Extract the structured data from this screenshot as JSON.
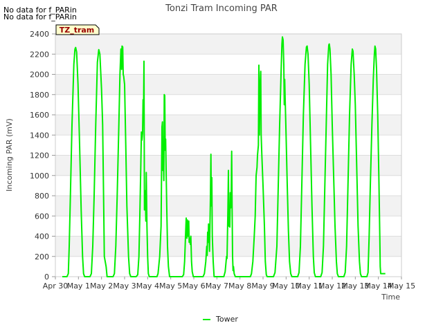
{
  "notes": [
    "No data for f_PARin",
    "No data for f_PARin"
  ],
  "site_label": "TZ_tram",
  "chart_data": {
    "type": "line",
    "title": "Tonzi Tram Incoming PAR",
    "xlabel": "Time",
    "ylabel": "Incoming PAR (mV)",
    "xlim": [
      0,
      15
    ],
    "ylim": [
      0,
      2400
    ],
    "grid": true,
    "legend_position": "bottom-center",
    "x_ticks": [
      {
        "v": 0,
        "label": "Apr 30"
      },
      {
        "v": 1,
        "label": "May 1"
      },
      {
        "v": 2,
        "label": "May 2"
      },
      {
        "v": 3,
        "label": "May 3"
      },
      {
        "v": 4,
        "label": "May 4"
      },
      {
        "v": 5,
        "label": "May 5"
      },
      {
        "v": 6,
        "label": "May 6"
      },
      {
        "v": 7,
        "label": "May 7"
      },
      {
        "v": 8,
        "label": "May 8"
      },
      {
        "v": 9,
        "label": "May 9"
      },
      {
        "v": 10,
        "label": "May 10"
      },
      {
        "v": 11,
        "label": "May 11"
      },
      {
        "v": 12,
        "label": "May 12"
      },
      {
        "v": 13,
        "label": "May 13"
      },
      {
        "v": 14,
        "label": "May 14"
      },
      {
        "v": 15,
        "label": "May 15"
      }
    ],
    "y_ticks": [
      0,
      200,
      400,
      600,
      800,
      1000,
      1200,
      1400,
      1600,
      1800,
      2000,
      2200,
      2400
    ],
    "series": [
      {
        "name": "Tower",
        "color": "#00ee00",
        "points": [
          [
            0.3,
            0
          ],
          [
            0.5,
            0
          ],
          [
            0.56,
            30
          ],
          [
            0.6,
            300
          ],
          [
            0.65,
            800
          ],
          [
            0.72,
            1500
          ],
          [
            0.8,
            2100
          ],
          [
            0.85,
            2250
          ],
          [
            0.88,
            2265
          ],
          [
            0.92,
            2220
          ],
          [
            0.98,
            1900
          ],
          [
            1.05,
            1300
          ],
          [
            1.12,
            650
          ],
          [
            1.18,
            200
          ],
          [
            1.22,
            30
          ],
          [
            1.27,
            0
          ],
          [
            1.5,
            0
          ],
          [
            1.56,
            30
          ],
          [
            1.62,
            300
          ],
          [
            1.68,
            800
          ],
          [
            1.75,
            1500
          ],
          [
            1.82,
            2120
          ],
          [
            1.88,
            2245
          ],
          [
            1.93,
            2200
          ],
          [
            2.0,
            1850
          ],
          [
            2.05,
            1500
          ],
          [
            2.1,
            600
          ],
          [
            2.12,
            200
          ],
          [
            2.2,
            100
          ],
          [
            2.24,
            0
          ],
          [
            2.5,
            0
          ],
          [
            2.56,
            30
          ],
          [
            2.62,
            300
          ],
          [
            2.68,
            800
          ],
          [
            2.75,
            1500
          ],
          [
            2.8,
            2000
          ],
          [
            2.84,
            2250
          ],
          [
            2.87,
            2050
          ],
          [
            2.89,
            2280
          ],
          [
            2.92,
            2270
          ],
          [
            2.94,
            2000
          ],
          [
            2.96,
            1980
          ],
          [
            3.0,
            1900
          ],
          [
            3.05,
            1300
          ],
          [
            3.1,
            700
          ],
          [
            3.17,
            200
          ],
          [
            3.22,
            30
          ],
          [
            3.27,
            0
          ],
          [
            3.5,
            0
          ],
          [
            3.57,
            20
          ],
          [
            3.62,
            200
          ],
          [
            3.66,
            600
          ],
          [
            3.7,
            1050
          ],
          [
            3.73,
            1430
          ],
          [
            3.75,
            1350
          ],
          [
            3.78,
            1420
          ],
          [
            3.8,
            1750
          ],
          [
            3.82,
            1550
          ],
          [
            3.84,
            2130
          ],
          [
            3.86,
            660
          ],
          [
            3.88,
            850
          ],
          [
            3.9,
            850
          ],
          [
            3.92,
            550
          ],
          [
            3.94,
            1030
          ],
          [
            3.97,
            500
          ],
          [
            4.0,
            200
          ],
          [
            4.03,
            30
          ],
          [
            4.07,
            0
          ],
          [
            4.4,
            0
          ],
          [
            4.45,
            30
          ],
          [
            4.52,
            200
          ],
          [
            4.58,
            500
          ],
          [
            4.62,
            1480
          ],
          [
            4.64,
            1530
          ],
          [
            4.66,
            1050
          ],
          [
            4.68,
            1250
          ],
          [
            4.7,
            950
          ],
          [
            4.72,
            1800
          ],
          [
            4.74,
            1790
          ],
          [
            4.76,
            1250
          ],
          [
            4.78,
            1360
          ],
          [
            4.8,
            1050
          ],
          [
            4.83,
            650
          ],
          [
            4.86,
            300
          ],
          [
            4.9,
            100
          ],
          [
            4.95,
            0
          ],
          [
            5.5,
            0
          ],
          [
            5.56,
            20
          ],
          [
            5.6,
            150
          ],
          [
            5.64,
            400
          ],
          [
            5.67,
            580
          ],
          [
            5.7,
            380
          ],
          [
            5.72,
            560
          ],
          [
            5.75,
            400
          ],
          [
            5.78,
            550
          ],
          [
            5.8,
            340
          ],
          [
            5.82,
            380
          ],
          [
            5.85,
            320
          ],
          [
            5.87,
            400
          ],
          [
            5.9,
            150
          ],
          [
            5.93,
            50
          ],
          [
            5.98,
            0
          ],
          [
            6.4,
            0
          ],
          [
            6.46,
            30
          ],
          [
            6.52,
            150
          ],
          [
            6.56,
            300
          ],
          [
            6.58,
            210
          ],
          [
            6.6,
            440
          ],
          [
            6.62,
            340
          ],
          [
            6.64,
            520
          ],
          [
            6.66,
            420
          ],
          [
            6.68,
            250
          ],
          [
            6.7,
            500
          ],
          [
            6.72,
            780
          ],
          [
            6.74,
            1210
          ],
          [
            6.76,
            700
          ],
          [
            6.78,
            980
          ],
          [
            6.8,
            400
          ],
          [
            6.84,
            150
          ],
          [
            6.88,
            0
          ],
          [
            7.3,
            0
          ],
          [
            7.36,
            50
          ],
          [
            7.42,
            200
          ],
          [
            7.44,
            180
          ],
          [
            7.48,
            680
          ],
          [
            7.5,
            1050
          ],
          [
            7.52,
            500
          ],
          [
            7.54,
            700
          ],
          [
            7.56,
            490
          ],
          [
            7.58,
            830
          ],
          [
            7.6,
            680
          ],
          [
            7.62,
            780
          ],
          [
            7.64,
            1240
          ],
          [
            7.66,
            700
          ],
          [
            7.68,
            200
          ],
          [
            7.7,
            60
          ],
          [
            7.72,
            100
          ],
          [
            7.75,
            30
          ],
          [
            7.8,
            0
          ],
          [
            8.45,
            0
          ],
          [
            8.5,
            30
          ],
          [
            8.56,
            150
          ],
          [
            8.62,
            400
          ],
          [
            8.66,
            600
          ],
          [
            8.7,
            1000
          ],
          [
            8.74,
            1080
          ],
          [
            8.76,
            1200
          ],
          [
            8.8,
            1300
          ],
          [
            8.82,
            2090
          ],
          [
            8.84,
            1400
          ],
          [
            8.86,
            1700
          ],
          [
            8.88,
            1900
          ],
          [
            8.9,
            2030
          ],
          [
            8.92,
            1400
          ],
          [
            8.95,
            1200
          ],
          [
            9.0,
            900
          ],
          [
            9.06,
            500
          ],
          [
            9.1,
            150
          ],
          [
            9.14,
            20
          ],
          [
            9.18,
            0
          ],
          [
            9.45,
            0
          ],
          [
            9.52,
            40
          ],
          [
            9.6,
            300
          ],
          [
            9.66,
            900
          ],
          [
            9.72,
            1500
          ],
          [
            9.78,
            2000
          ],
          [
            9.82,
            2300
          ],
          [
            9.84,
            2370
          ],
          [
            9.87,
            2340
          ],
          [
            9.9,
            2100
          ],
          [
            9.92,
            1700
          ],
          [
            9.94,
            1950
          ],
          [
            9.96,
            1750
          ],
          [
            10.0,
            1400
          ],
          [
            10.05,
            900
          ],
          [
            10.1,
            450
          ],
          [
            10.15,
            150
          ],
          [
            10.2,
            30
          ],
          [
            10.25,
            0
          ],
          [
            10.5,
            0
          ],
          [
            10.56,
            40
          ],
          [
            10.62,
            300
          ],
          [
            10.68,
            900
          ],
          [
            10.75,
            1600
          ],
          [
            10.82,
            2100
          ],
          [
            10.88,
            2270
          ],
          [
            10.91,
            2280
          ],
          [
            10.95,
            2200
          ],
          [
            11.0,
            1900
          ],
          [
            11.06,
            1300
          ],
          [
            11.12,
            700
          ],
          [
            11.18,
            200
          ],
          [
            11.22,
            40
          ],
          [
            11.27,
            0
          ],
          [
            11.5,
            0
          ],
          [
            11.56,
            40
          ],
          [
            11.62,
            300
          ],
          [
            11.68,
            900
          ],
          [
            11.74,
            1500
          ],
          [
            11.8,
            2100
          ],
          [
            11.85,
            2290
          ],
          [
            11.87,
            2300
          ],
          [
            11.9,
            2250
          ],
          [
            11.95,
            2000
          ],
          [
            12.0,
            1500
          ],
          [
            12.06,
            1000
          ],
          [
            12.12,
            500
          ],
          [
            12.18,
            150
          ],
          [
            12.22,
            30
          ],
          [
            12.27,
            0
          ],
          [
            12.5,
            0
          ],
          [
            12.56,
            40
          ],
          [
            12.62,
            300
          ],
          [
            12.68,
            900
          ],
          [
            12.75,
            1600
          ],
          [
            12.82,
            2100
          ],
          [
            12.87,
            2250
          ],
          [
            12.9,
            2230
          ],
          [
            12.95,
            2000
          ],
          [
            13.0,
            1700
          ],
          [
            13.06,
            1100
          ],
          [
            13.12,
            500
          ],
          [
            13.18,
            150
          ],
          [
            13.22,
            30
          ],
          [
            13.27,
            0
          ],
          [
            13.5,
            0
          ],
          [
            13.55,
            40
          ],
          [
            13.6,
            400
          ],
          [
            13.65,
            900
          ],
          [
            13.72,
            1500
          ],
          [
            13.78,
            1950
          ],
          [
            13.82,
            2180
          ],
          [
            13.85,
            2280
          ],
          [
            13.88,
            2250
          ],
          [
            13.92,
            2050
          ],
          [
            13.97,
            1600
          ],
          [
            14.02,
            1000
          ],
          [
            14.06,
            400
          ],
          [
            14.08,
            100
          ],
          [
            14.1,
            30
          ],
          [
            14.3,
            30
          ]
        ]
      }
    ]
  }
}
